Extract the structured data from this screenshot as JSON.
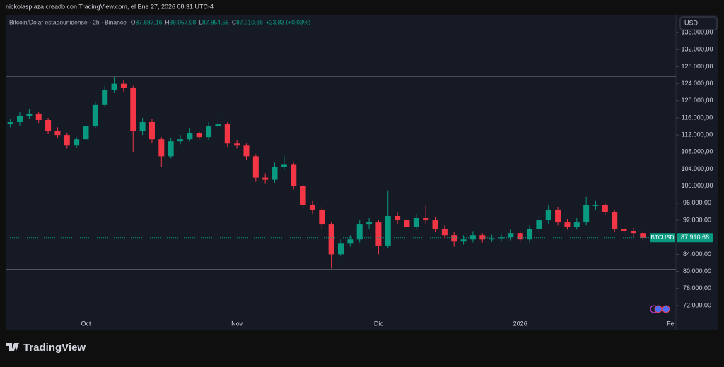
{
  "header": {
    "text": "nickolasplaza creado con TradingView.com, el Ene 27, 2026 08:31 UTC-4"
  },
  "legend": {
    "symbol": "Bitcoin/Dólar estadounidense · 2h · Binance",
    "fields": [
      {
        "key": "O",
        "value": "87.887,16"
      },
      {
        "key": "H",
        "value": "88.057,98"
      },
      {
        "key": "L",
        "value": "87.854,55"
      },
      {
        "key": "C",
        "value": "87.910,68"
      }
    ],
    "change": "+23,83 (+0,03%)"
  },
  "currency_button": "USD",
  "logo": "TradingView",
  "chart_data": {
    "type": "candlestick",
    "categories": [
      null,
      null,
      null,
      null,
      null,
      null,
      null,
      null,
      "Oct",
      null,
      null,
      null,
      null,
      null,
      null,
      null,
      null,
      null,
      null,
      null,
      null,
      null,
      null,
      null,
      "Nov",
      null,
      null,
      null,
      null,
      null,
      null,
      null,
      null,
      null,
      null,
      null,
      null,
      null,
      null,
      "Dic",
      null,
      null,
      null,
      null,
      null,
      null,
      null,
      null,
      null,
      null,
      null,
      null,
      null,
      null,
      "2026",
      null,
      null,
      null,
      null,
      null,
      null,
      null,
      null,
      null,
      null,
      null,
      null,
      null,
      null,
      null,
      "Fel"
    ],
    "open": [
      114500,
      115000,
      116500,
      117000,
      115500,
      113000,
      112000,
      109500,
      111000,
      114000,
      119000,
      122500,
      124000,
      123000,
      113000,
      115000,
      111000,
      107000,
      110500,
      111000,
      112500,
      111500,
      114000,
      114500,
      110000,
      109500,
      107000,
      102000,
      101500,
      104500,
      105000,
      100000,
      95500,
      94500,
      91000,
      84000,
      86500,
      87500,
      91000,
      91500,
      86000,
      93000,
      92000,
      90500,
      92500,
      92000,
      90000,
      88500,
      87000,
      87500,
      88500,
      87500,
      87800,
      88000,
      89000,
      87500,
      90000,
      92000,
      94500,
      91500,
      90500,
      91500,
      95500,
      95500,
      94000,
      90000,
      89500,
      89000,
      null,
      null,
      null
    ],
    "high": [
      115800,
      117300,
      118000,
      117500,
      116000,
      113800,
      112500,
      111500,
      114800,
      119800,
      123500,
      125600,
      124800,
      123500,
      116000,
      115800,
      111500,
      111200,
      112000,
      113500,
      113000,
      115000,
      116000,
      115000,
      110800,
      110000,
      107500,
      103000,
      105500,
      107000,
      105500,
      100800,
      96500,
      95000,
      91500,
      87500,
      88500,
      92000,
      92500,
      92000,
      99000,
      93800,
      93000,
      93500,
      95500,
      92800,
      90800,
      89200,
      88500,
      89300,
      89000,
      88600,
      88800,
      89800,
      89500,
      90800,
      93000,
      95500,
      95000,
      92200,
      92500,
      97500,
      96500,
      96000,
      94500,
      90800,
      90200,
      89400,
      null,
      null,
      null
    ],
    "low": [
      113800,
      114200,
      115800,
      114800,
      112200,
      111200,
      108800,
      108900,
      110500,
      113500,
      118500,
      121800,
      122000,
      108000,
      112000,
      110200,
      104500,
      106500,
      109800,
      110500,
      110800,
      110800,
      113200,
      109200,
      108800,
      106200,
      101000,
      100500,
      100800,
      103800,
      99200,
      94800,
      93500,
      90000,
      80700,
      83500,
      85800,
      86800,
      90000,
      84000,
      85500,
      91000,
      89800,
      89800,
      91200,
      89200,
      87800,
      85800,
      86300,
      86800,
      86800,
      86900,
      87000,
      87300,
      86800,
      86800,
      89200,
      91200,
      90800,
      89800,
      89800,
      90800,
      94500,
      93200,
      89200,
      88500,
      88000,
      87200,
      null,
      null,
      null
    ],
    "close": [
      115000,
      116500,
      117000,
      115500,
      113000,
      112000,
      109500,
      111000,
      114000,
      119000,
      122500,
      124000,
      123000,
      113000,
      115000,
      111000,
      107000,
      110500,
      111000,
      112500,
      111500,
      114000,
      114500,
      110000,
      109500,
      107000,
      102000,
      101500,
      104500,
      105000,
      100000,
      95500,
      94500,
      91000,
      84000,
      86500,
      87500,
      91000,
      91500,
      86000,
      93000,
      92000,
      90500,
      92500,
      92000,
      90000,
      88500,
      87000,
      87500,
      88500,
      87500,
      87800,
      88000,
      89000,
      87500,
      90000,
      92000,
      94500,
      91500,
      90500,
      91500,
      95500,
      95500,
      94000,
      90000,
      89500,
      89000,
      87910.68,
      null,
      null,
      null
    ],
    "up_color": "#089981",
    "down_color": "#f23645",
    "ylim": [
      66200,
      140150
    ],
    "yticks": [
      {
        "value": 72000,
        "label": "72.000,00"
      },
      {
        "value": 76000,
        "label": "76.000,00"
      },
      {
        "value": 80000,
        "label": "80.000,00"
      },
      {
        "value": 84000,
        "label": "84.000,00"
      },
      {
        "value": 88000,
        "label": "88.000,00"
      },
      {
        "value": 92000,
        "label": "92.000,00"
      },
      {
        "value": 96000,
        "label": "96.000,00"
      },
      {
        "value": 100000,
        "label": "100.000,00"
      },
      {
        "value": 104000,
        "label": "104.000,00"
      },
      {
        "value": 108000,
        "label": "108.000,00"
      },
      {
        "value": 112000,
        "label": "112.000,00"
      },
      {
        "value": 116000,
        "label": "116.000,00"
      },
      {
        "value": 120000,
        "label": "120.000,00"
      },
      {
        "value": 124000,
        "label": "124.000,00"
      },
      {
        "value": 128000,
        "label": "128.000,00"
      },
      {
        "value": 132000,
        "label": "132.000,00"
      },
      {
        "value": 136000,
        "label": "136.000,00"
      }
    ],
    "grid": false,
    "hlines": [
      125700,
      80500
    ],
    "last_price": {
      "symbol": "BTCUSD",
      "label": "87.910,68"
    }
  }
}
